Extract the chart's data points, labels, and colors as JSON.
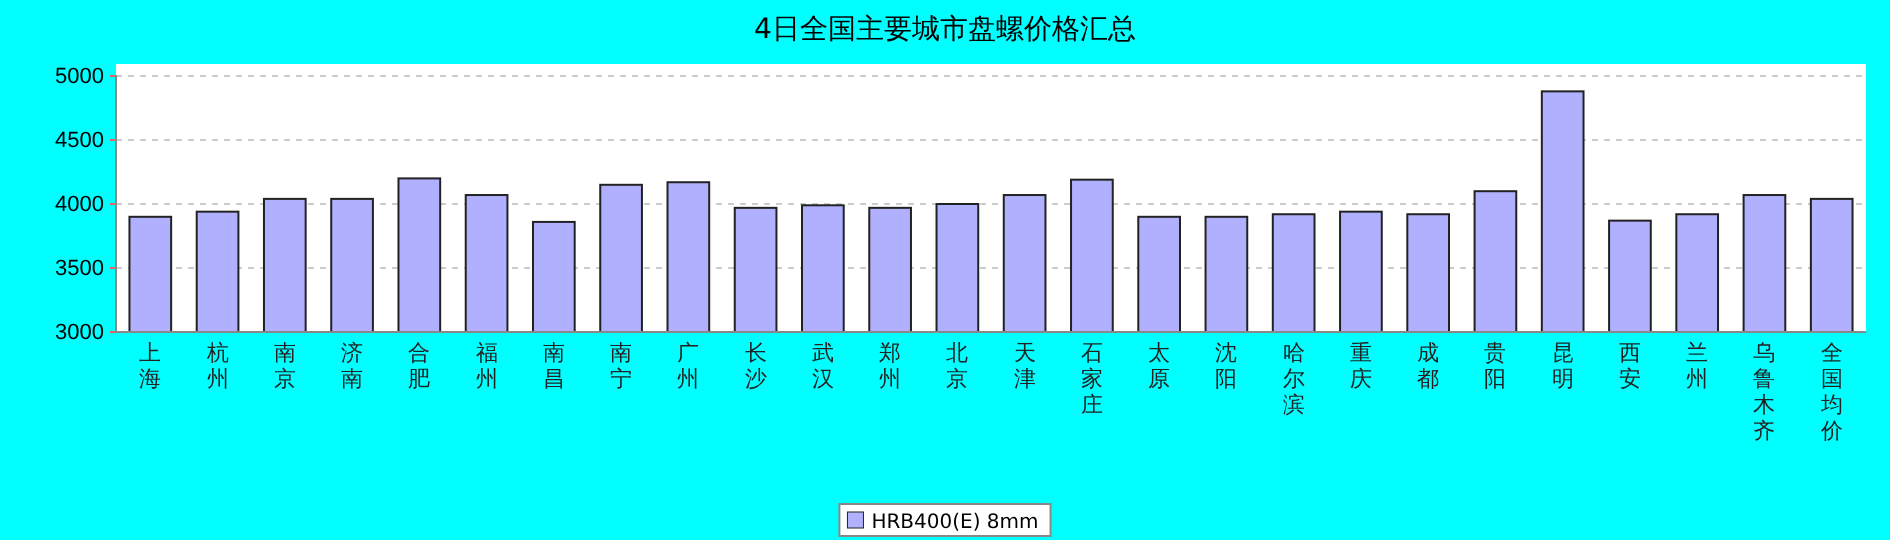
{
  "chart_data": {
    "type": "bar",
    "title": "4日全国主要城市盘螺价格汇总",
    "categories": [
      "上海",
      "杭州",
      "南京",
      "济南",
      "合肥",
      "福州",
      "南昌",
      "南宁",
      "广州",
      "长沙",
      "武汉",
      "郑州",
      "北京",
      "天津",
      "石家庄",
      "太原",
      "沈阳",
      "哈尔滨",
      "重庆",
      "成都",
      "贵阳",
      "昆明",
      "西安",
      "兰州",
      "乌鲁木齐",
      "全国均价"
    ],
    "series": [
      {
        "name": "HRB400(E) 8mm",
        "color": "#b0b0ff",
        "values": [
          3900,
          3940,
          4040,
          4040,
          4200,
          4070,
          3860,
          4150,
          4170,
          3970,
          3990,
          3970,
          4000,
          4070,
          4190,
          3900,
          3900,
          3920,
          3940,
          3920,
          4100,
          4880,
          3870,
          3920,
          4070,
          4040
        ]
      }
    ],
    "ylim": [
      3000,
      5000
    ],
    "yticks": [
      3000,
      3500,
      4000,
      4500,
      5000
    ],
    "grid": "y",
    "legend": "bottom"
  }
}
